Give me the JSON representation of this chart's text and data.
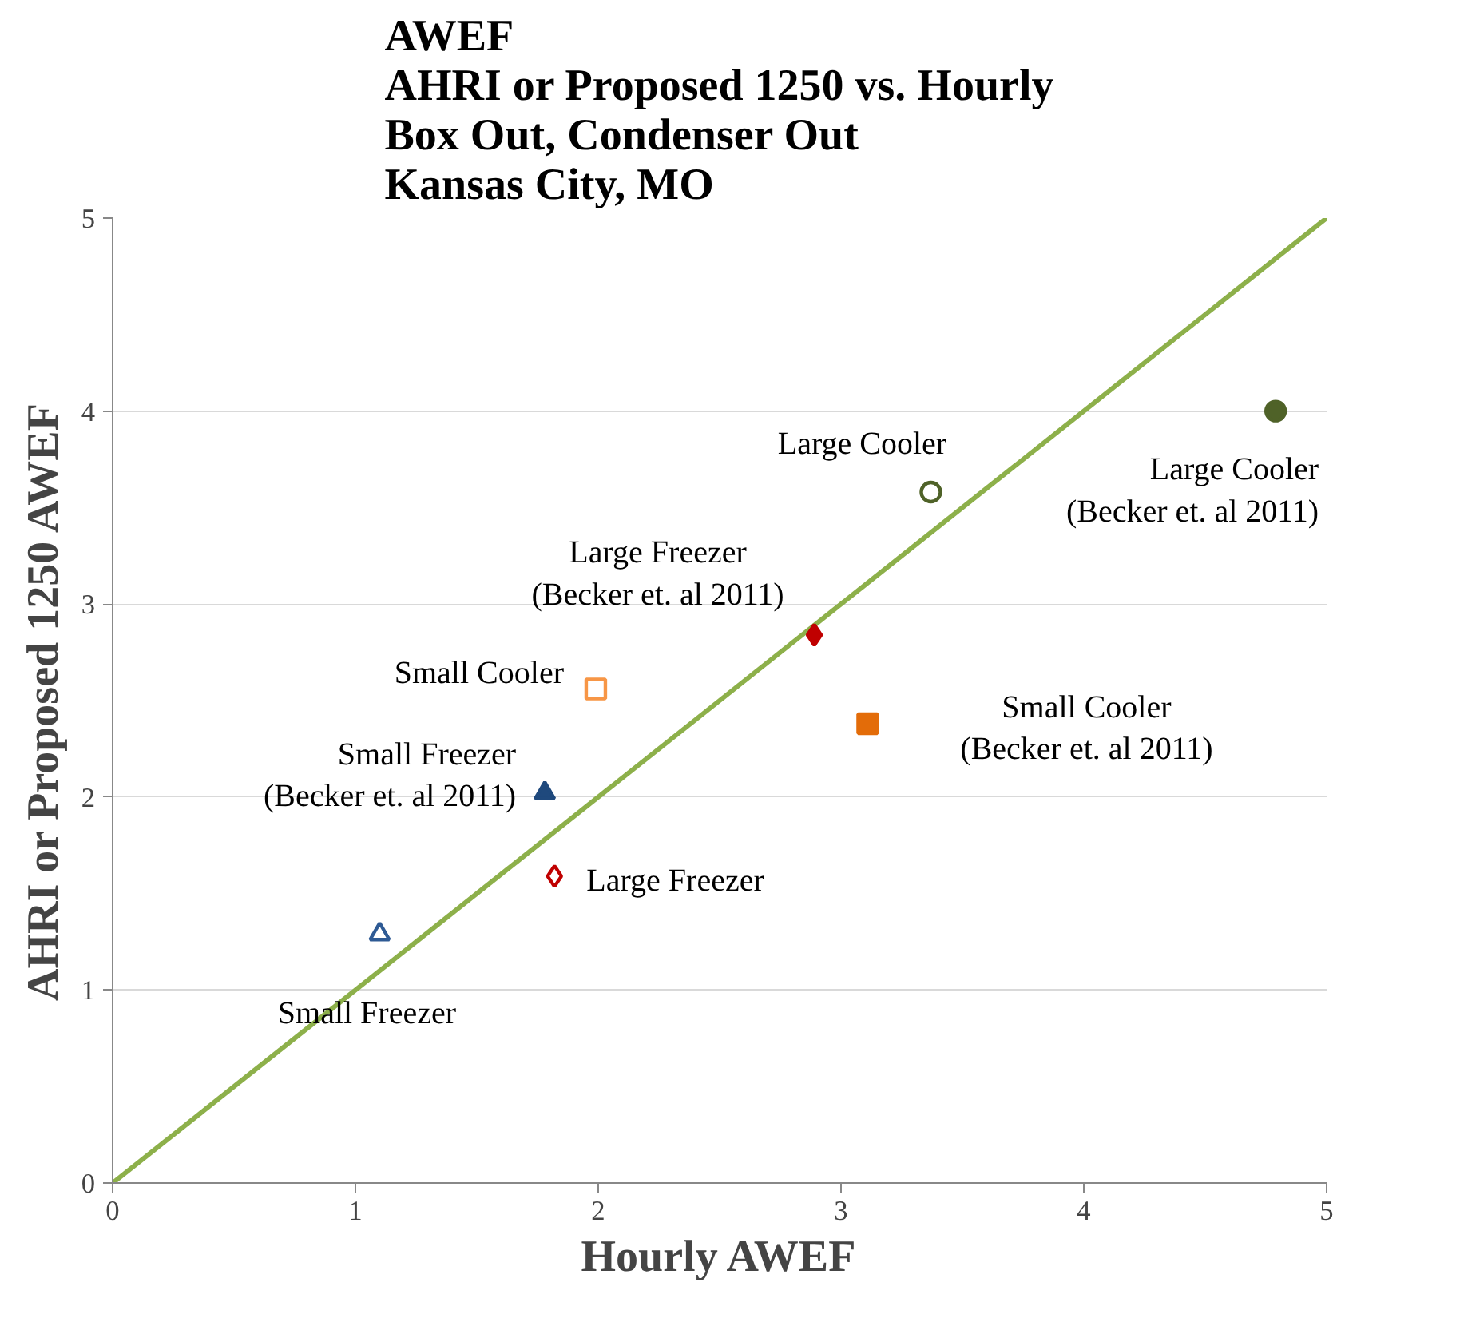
{
  "chart_data": {
    "type": "scatter",
    "title": "AWEF\nAHRI or Proposed 1250 vs. Hourly\nBox Out, Condenser Out\nKansas City, MO",
    "xlabel": "Hourly AWEF",
    "ylabel": "AHRI or Proposed 1250 AWEF",
    "xlim": [
      0,
      5
    ],
    "ylim": [
      0,
      5
    ],
    "xticks": [
      0,
      1,
      2,
      3,
      4,
      5
    ],
    "yticks": [
      0,
      1,
      2,
      3,
      4,
      5
    ],
    "grid": "y",
    "series": [
      {
        "type": "line",
        "color": "#8db04a",
        "x": [
          0,
          5
        ],
        "values": [
          0,
          5
        ],
        "marker": "none",
        "line_style": "solid"
      },
      {
        "name": "Large Cooler",
        "color": "#4f6228",
        "x": [
          3.37
        ],
        "values": [
          3.58
        ],
        "marker": "circle"
      },
      {
        "name": "Large Cooler\n(Becker et. al 2011)",
        "color": "#4f6228",
        "x": [
          4.79
        ],
        "values": [
          4.0
        ],
        "marker": "circle"
      },
      {
        "name": "Large Freezer\n(Becker et. al 2011)",
        "color": "#c00000",
        "x": [
          2.89
        ],
        "values": [
          2.84
        ],
        "marker": "diamond"
      },
      {
        "name": "Small Cooler",
        "color": "#f79646",
        "x": [
          1.99
        ],
        "values": [
          2.56
        ],
        "marker": "square"
      },
      {
        "name": "Small Cooler\n(Becker et. al 2011)",
        "color": "#e36c09",
        "x": [
          3.11
        ],
        "values": [
          2.38
        ],
        "marker": "square"
      },
      {
        "name": "Small Freezer\n(Becker et. al 2011)",
        "color": "#1f497d",
        "x": [
          1.78
        ],
        "values": [
          2.02
        ],
        "marker": "triangle"
      },
      {
        "name": "Large Freezer",
        "color": "#c00000",
        "x": [
          1.82
        ],
        "values": [
          1.59
        ],
        "marker": "diamond"
      },
      {
        "name": "Small Freezer",
        "color": "#2e5a94",
        "x": [
          1.1
        ],
        "values": [
          1.29
        ],
        "marker": "triangle"
      }
    ]
  }
}
